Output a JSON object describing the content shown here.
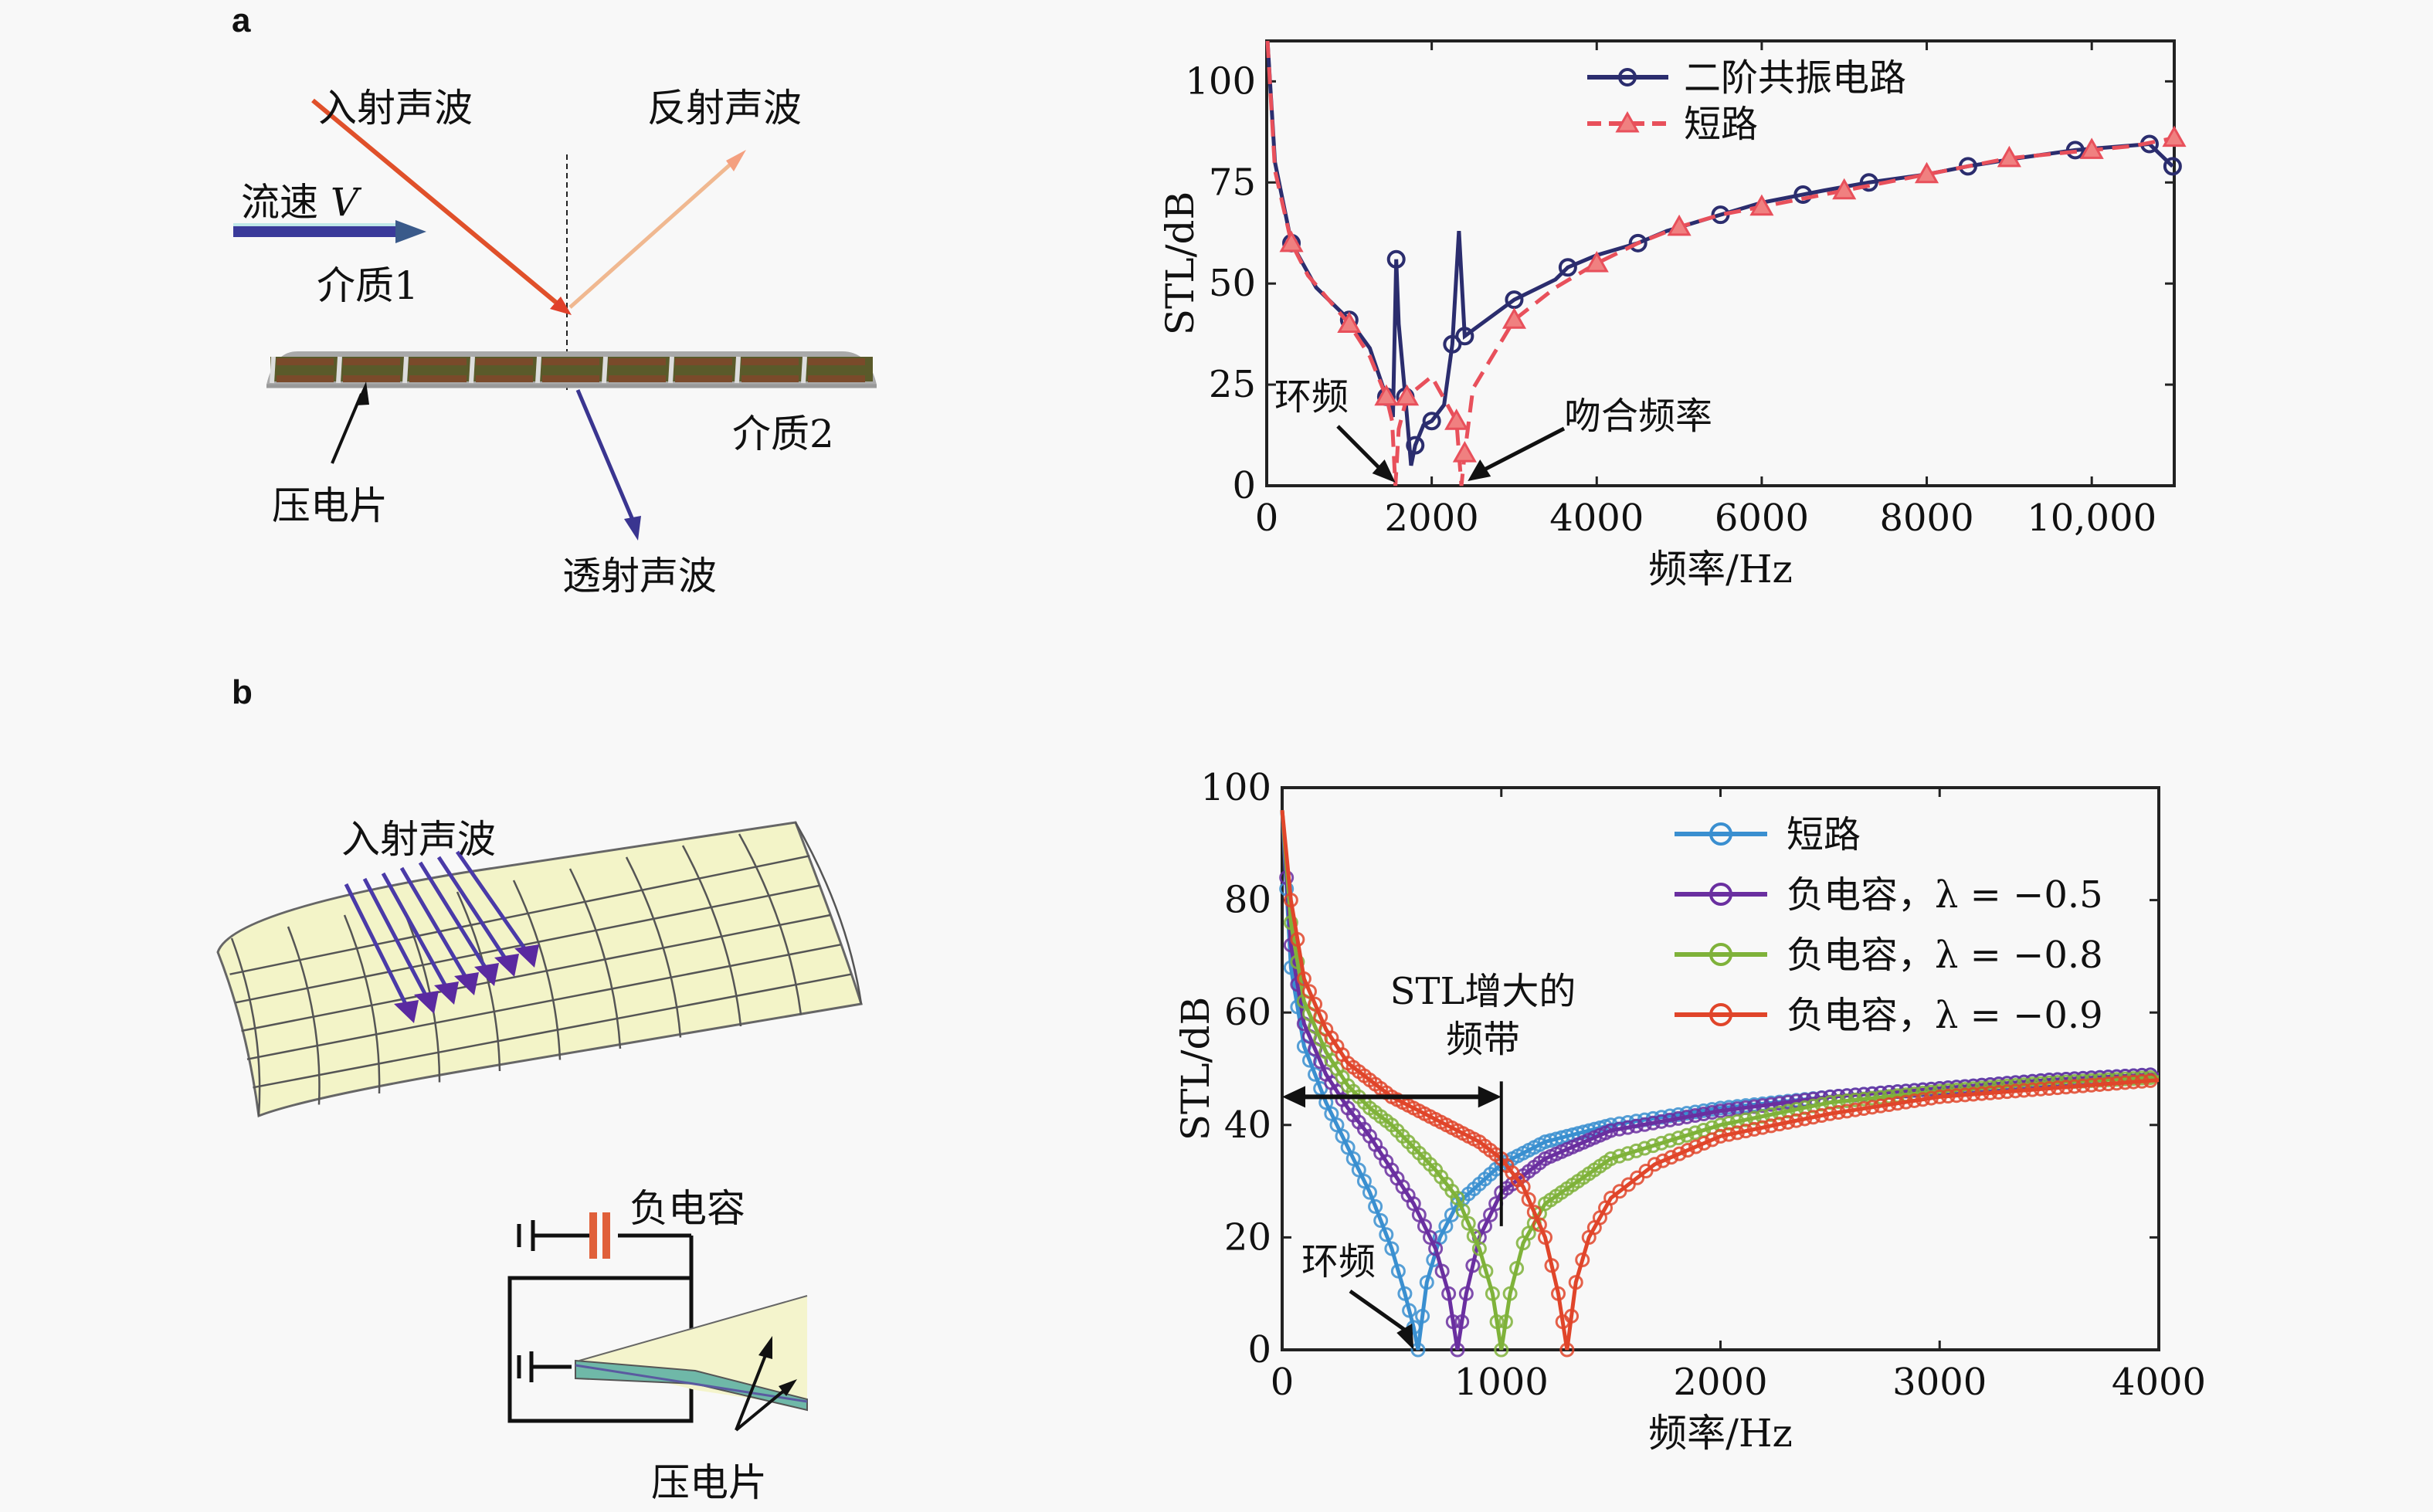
{
  "panels": {
    "a": {
      "label": "a",
      "diagram": {
        "incident": "入射声波",
        "reflected": "反射声波",
        "flow": "流速",
        "flow_symbol": "V",
        "medium1": "介质1",
        "medium2": "介质2",
        "piezo": "压电片",
        "transmitted": "透射声波"
      }
    },
    "b": {
      "label": "b",
      "diagram": {
        "incident": "入射声波",
        "neg_cap": "负电容",
        "piezo": "压电片"
      }
    }
  },
  "colors": {
    "resonant": "#2b2d6e",
    "short_a": "#e8505b",
    "short_b": "#3a8fd0",
    "lam05": "#6a2fa0",
    "lam08": "#7fb23a",
    "lam09": "#e0452a",
    "incident_arrow": "#e0502a",
    "reflected_arrow": "#f0b890",
    "transmitted_arrow": "#3a3590",
    "flow_arrow": "#3a3a9a",
    "capacitor": "#e0603a"
  },
  "chart_data": [
    {
      "type": "line",
      "title": "",
      "xlabel": "频率/Hz",
      "ylabel": "STL/dB",
      "xlim": [
        0,
        11000
      ],
      "ylim": [
        0,
        110
      ],
      "xticks": [
        0,
        2000,
        4000,
        6000,
        8000,
        10000
      ],
      "xtick_labels": [
        "0",
        "2000",
        "4000",
        "6000",
        "8000",
        "10,000"
      ],
      "yticks": [
        0,
        25,
        50,
        75,
        100
      ],
      "ytick_labels": [
        "0",
        "25",
        "50",
        "75",
        "100"
      ],
      "legend_position": "top-center",
      "annotations": [
        {
          "text": "环频",
          "x": 1560,
          "y": 0
        },
        {
          "text": "吻合频率",
          "x": 2380,
          "y": 0
        }
      ],
      "series": [
        {
          "name": "二阶共振电路",
          "style": "solid",
          "marker": "circle",
          "x": [
            10,
            100,
            300,
            600,
            1000,
            1250,
            1450,
            1530,
            1570,
            1600,
            1680,
            1750,
            1800,
            1900,
            2000,
            2150,
            2250,
            2330,
            2400,
            2600,
            3000,
            3500,
            3650,
            4000,
            4500,
            4850,
            5500,
            6000,
            6500,
            6750,
            7300,
            8000,
            8500,
            9100,
            9800,
            10400,
            10700,
            10980
          ],
          "y": [
            110,
            80,
            60,
            49,
            41,
            34,
            22,
            17,
            56,
            40,
            22,
            5,
            10,
            15,
            16,
            20,
            35,
            63,
            37,
            40,
            46,
            51,
            54,
            57,
            60,
            63,
            67,
            70,
            72,
            73,
            75,
            77,
            79,
            81,
            83,
            84,
            84.5,
            79
          ]
        },
        {
          "name": "短路",
          "style": "dashed",
          "marker": "triangle",
          "x": [
            10,
            100,
            300,
            500,
            1000,
            1250,
            1450,
            1520,
            1560,
            1600,
            1700,
            2000,
            2300,
            2360,
            2400,
            2500,
            3000,
            3500,
            4000,
            4500,
            5000,
            5500,
            6000,
            6500,
            7000,
            7500,
            8000,
            8500,
            9000,
            9500,
            10000,
            10500,
            11000
          ],
          "y": [
            110,
            78,
            60,
            52,
            40,
            32,
            22,
            16,
            0,
            14,
            22,
            27,
            16,
            0,
            8,
            24,
            41,
            49,
            55,
            60,
            64,
            67,
            69,
            71,
            73,
            75,
            77,
            79,
            81,
            82,
            83,
            84,
            86
          ]
        }
      ]
    },
    {
      "type": "line",
      "title": "",
      "xlabel": "频率/Hz",
      "ylabel": "STL/dB",
      "xlim": [
        0,
        4000
      ],
      "ylim": [
        0,
        100
      ],
      "xticks": [
        0,
        1000,
        2000,
        3000,
        4000
      ],
      "xtick_labels": [
        "0",
        "1000",
        "2000",
        "3000",
        "4000"
      ],
      "yticks": [
        0,
        20,
        40,
        60,
        80,
        100
      ],
      "ytick_labels": [
        "0",
        "20",
        "40",
        "60",
        "80",
        "100"
      ],
      "legend_position": "top-right",
      "annotations": [
        {
          "text": "STL增大的",
          "x": 450,
          "y": 63
        },
        {
          "text": "频带",
          "x": 450,
          "y": 54
        },
        {
          "text": "环频",
          "x": 600,
          "y": 0
        },
        {
          "text": "band-arrow",
          "x_start": 0,
          "x_end": 1000,
          "y": 45
        }
      ],
      "series": [
        {
          "name": "短路",
          "dip_hz": 620,
          "x": [
            0,
            40,
            100,
            200,
            300,
            400,
            500,
            560,
            600,
            620,
            660,
            720,
            800,
            1000,
            1200,
            1500,
            2000,
            2500,
            3000,
            3500,
            4000
          ],
          "y": [
            96,
            68,
            54,
            44,
            36,
            28,
            18,
            10,
            4,
            0,
            12,
            20,
            26,
            33,
            37,
            40,
            43,
            45,
            46.5,
            48,
            49
          ]
        },
        {
          "name": "负电容，λ = −0.5",
          "dip_hz": 800,
          "x": [
            0,
            40,
            100,
            200,
            300,
            400,
            500,
            600,
            700,
            760,
            800,
            840,
            900,
            1000,
            1200,
            1500,
            2000,
            2500,
            3000,
            3500,
            4000
          ],
          "y": [
            96,
            72,
            58,
            49,
            43,
            38,
            32,
            26,
            18,
            10,
            0,
            10,
            20,
            28,
            34,
            39,
            42.5,
            45,
            46.5,
            48,
            49
          ]
        },
        {
          "name": "负电容，λ = −0.8",
          "dip_hz": 1000,
          "x": [
            0,
            40,
            100,
            200,
            300,
            400,
            500,
            600,
            700,
            800,
            900,
            960,
            1000,
            1040,
            1100,
            1200,
            1500,
            2000,
            2500,
            3000,
            3500,
            4000
          ],
          "y": [
            96,
            76,
            62,
            53,
            47,
            43,
            40,
            36,
            32,
            27,
            18,
            10,
            0,
            10,
            19,
            26,
            34,
            40,
            44,
            46,
            47.5,
            48.5
          ]
        },
        {
          "name": "负电容，λ = −0.9",
          "dip_hz": 1300,
          "x": [
            0,
            40,
            100,
            200,
            300,
            400,
            500,
            600,
            700,
            800,
            900,
            1000,
            1100,
            1200,
            1260,
            1300,
            1340,
            1400,
            1500,
            1700,
            2000,
            2500,
            3000,
            3500,
            4000
          ],
          "y": [
            96,
            80,
            66,
            57,
            51,
            48,
            45,
            43,
            41,
            39,
            37,
            34,
            29,
            20,
            10,
            0,
            12,
            20,
            27,
            33,
            38,
            42,
            45,
            46.5,
            48
          ]
        }
      ]
    }
  ]
}
